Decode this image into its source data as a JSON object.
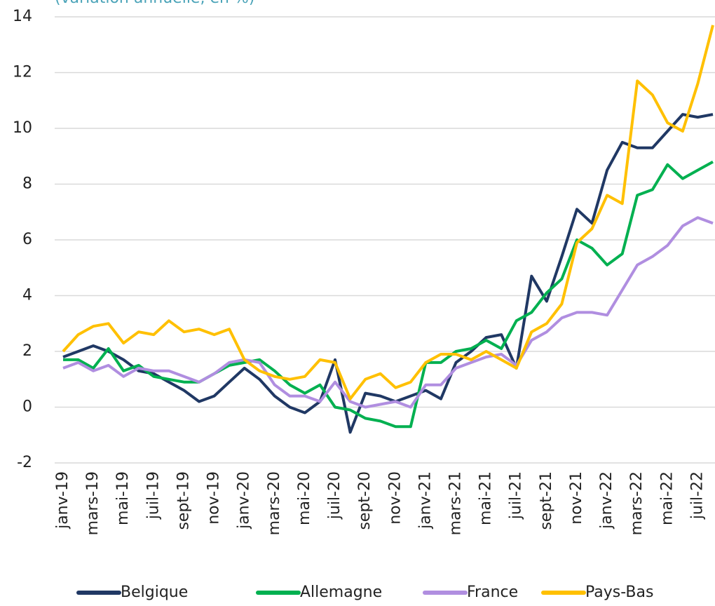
{
  "chart_data": {
    "type": "line",
    "subtitle": "(variation annuelle, en %)",
    "categories": [
      "janv-19",
      null,
      "mars-19",
      null,
      "mai-19",
      null,
      "juil-19",
      null,
      "sept-19",
      null,
      "nov-19",
      null,
      "janv-20",
      null,
      "mars-20",
      null,
      "mai-20",
      null,
      "juil-20",
      null,
      "sept-20",
      null,
      "nov-20",
      null,
      "janv-21",
      null,
      "mars-21",
      null,
      "mai-21",
      null,
      "juil-21",
      null,
      "sept-21",
      null,
      "nov-21",
      null,
      "janv-22",
      null,
      "mars-22",
      null,
      "mai-22",
      null,
      "juil-22",
      null
    ],
    "series": [
      {
        "name": "Belgique",
        "color": "#203864",
        "values": [
          1.8,
          2.0,
          2.2,
          2.0,
          1.7,
          1.3,
          1.2,
          0.9,
          0.6,
          0.2,
          0.4,
          0.9,
          1.4,
          1.0,
          0.4,
          0.0,
          -0.2,
          0.2,
          1.7,
          -0.9,
          0.5,
          0.4,
          0.2,
          0.4,
          0.6,
          0.3,
          1.6,
          2.0,
          2.5,
          2.6,
          1.4,
          4.7,
          3.8,
          5.4,
          7.1,
          6.6,
          8.5,
          9.5,
          9.3,
          9.3,
          9.9,
          10.5,
          10.4,
          10.5
        ]
      },
      {
        "name": "Allemagne",
        "color": "#00b050",
        "values": [
          1.7,
          1.7,
          1.4,
          2.1,
          1.3,
          1.5,
          1.1,
          1.0,
          0.9,
          0.9,
          1.2,
          1.5,
          1.6,
          1.7,
          1.3,
          0.8,
          0.5,
          0.8,
          0.0,
          -0.1,
          -0.4,
          -0.5,
          -0.7,
          -0.7,
          1.6,
          1.6,
          2.0,
          2.1,
          2.4,
          2.1,
          3.1,
          3.4,
          4.1,
          4.6,
          6.0,
          5.7,
          5.1,
          5.5,
          7.6,
          7.8,
          8.7,
          8.2,
          8.5,
          8.8
        ]
      },
      {
        "name": "France",
        "color": "#b08ee0",
        "values": [
          1.4,
          1.6,
          1.3,
          1.5,
          1.1,
          1.4,
          1.3,
          1.3,
          1.1,
          0.9,
          1.2,
          1.6,
          1.7,
          1.6,
          0.8,
          0.4,
          0.4,
          0.2,
          0.9,
          0.2,
          0.0,
          0.1,
          0.2,
          0.0,
          0.8,
          0.8,
          1.4,
          1.6,
          1.8,
          1.9,
          1.5,
          2.4,
          2.7,
          3.2,
          3.4,
          3.4,
          3.3,
          4.2,
          5.1,
          5.4,
          5.8,
          6.5,
          6.8,
          6.6
        ]
      },
      {
        "name": "Pays-Bas",
        "color": "#ffc000",
        "values": [
          2.0,
          2.6,
          2.9,
          3.0,
          2.3,
          2.7,
          2.6,
          3.1,
          2.7,
          2.8,
          2.6,
          2.8,
          1.7,
          1.3,
          1.1,
          1.0,
          1.1,
          1.7,
          1.6,
          0.3,
          1.0,
          1.2,
          0.7,
          0.9,
          1.6,
          1.9,
          1.9,
          1.7,
          2.0,
          1.7,
          1.4,
          2.7,
          3.0,
          3.7,
          5.9,
          6.4,
          7.6,
          7.3,
          11.7,
          11.2,
          10.2,
          9.9,
          11.6,
          13.7
        ]
      }
    ],
    "ylim": [
      -2,
      14
    ],
    "yticks": [
      -2,
      0,
      2,
      4,
      6,
      8,
      10,
      12,
      14
    ],
    "grid": true,
    "legend": "bottom"
  }
}
